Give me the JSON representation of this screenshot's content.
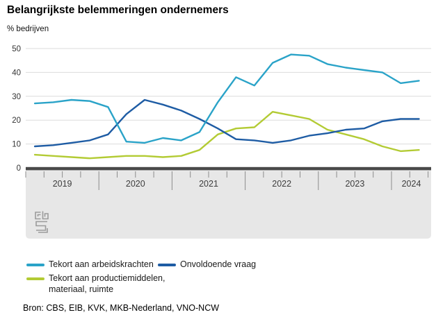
{
  "header": {
    "title": "Belangrijkste belemmeringen ondernemers",
    "unit_label": "% bedrijven"
  },
  "chart_data": {
    "type": "line",
    "title": "Belangrijkste belemmeringen ondernemers",
    "ylabel": "% bedrijven",
    "xlabel": "",
    "ylim": [
      0,
      50
    ],
    "yticks": [
      0,
      10,
      20,
      30,
      40,
      50
    ],
    "grid": true,
    "legend_position": "bottom",
    "x_period": "quarterly",
    "x_labels": [
      "2019Q1",
      "2019Q2",
      "2019Q3",
      "2019Q4",
      "2020Q1",
      "2020Q2",
      "2020Q3",
      "2020Q4",
      "2021Q1",
      "2021Q2",
      "2021Q3",
      "2021Q4",
      "2022Q1",
      "2022Q2",
      "2022Q3",
      "2022Q4",
      "2023Q1",
      "2023Q2",
      "2023Q3",
      "2023Q4",
      "2024Q1",
      "2024Q2"
    ],
    "year_labels": [
      "2019",
      "2020",
      "2021",
      "2022",
      "2023",
      "2024"
    ],
    "series": [
      {
        "name": "Tekort aan productiemiddelen, materiaal, ruimte",
        "color": "#B3CB34",
        "values": [
          5.5,
          5,
          4.5,
          4,
          4.5,
          5,
          5,
          4.5,
          5,
          7.5,
          14,
          16.5,
          17,
          23.5,
          22,
          20.5,
          16,
          14,
          12,
          9,
          7,
          7.5
        ]
      },
      {
        "name": "Onvoldoende vraag",
        "color": "#1E5CA4",
        "values": [
          9,
          9.5,
          10.5,
          11.5,
          14,
          22.5,
          28.5,
          26.5,
          24,
          20.5,
          16.5,
          12,
          11.5,
          10.5,
          11.5,
          13.5,
          14.5,
          16,
          16.5,
          19.5,
          20.5,
          20.5
        ]
      },
      {
        "name": "Tekort aan arbeidskrachten",
        "color": "#2AA3C8",
        "values": [
          27,
          27.5,
          28.5,
          28,
          25.5,
          11,
          10.5,
          12.5,
          11.5,
          15,
          27.5,
          38,
          34.5,
          44,
          47.5,
          47,
          43.5,
          42,
          41,
          40,
          35.5,
          36.5
        ]
      }
    ],
    "colors": {
      "gridline": "#DBDBDB",
      "axis_bar": "#4A4A4A",
      "tick": "#8C8C8C",
      "band": "#E7E7E7",
      "axis_text": "#3C3C3C"
    }
  },
  "legend": {
    "items": [
      {
        "label": "Tekort aan arbeidskrachten",
        "lines": [
          "Tekort aan arbeidskrachten"
        ],
        "color": "#2AA3C8"
      },
      {
        "label": "Onvoldoende vraag",
        "lines": [
          "Onvoldoende vraag"
        ],
        "color": "#1E5CA4"
      },
      {
        "label": "Tekort aan productiemiddelen, materiaal, ruimte",
        "lines": [
          "Tekort aan productiemiddelen,",
          "materiaal, ruimte"
        ],
        "color": "#B3CB34"
      }
    ]
  },
  "footer": {
    "source": "Bron: CBS, EIB, KVK, MKB-Nederland, VNO-NCW"
  },
  "branding": {
    "logo_name": "cbs-logo"
  }
}
